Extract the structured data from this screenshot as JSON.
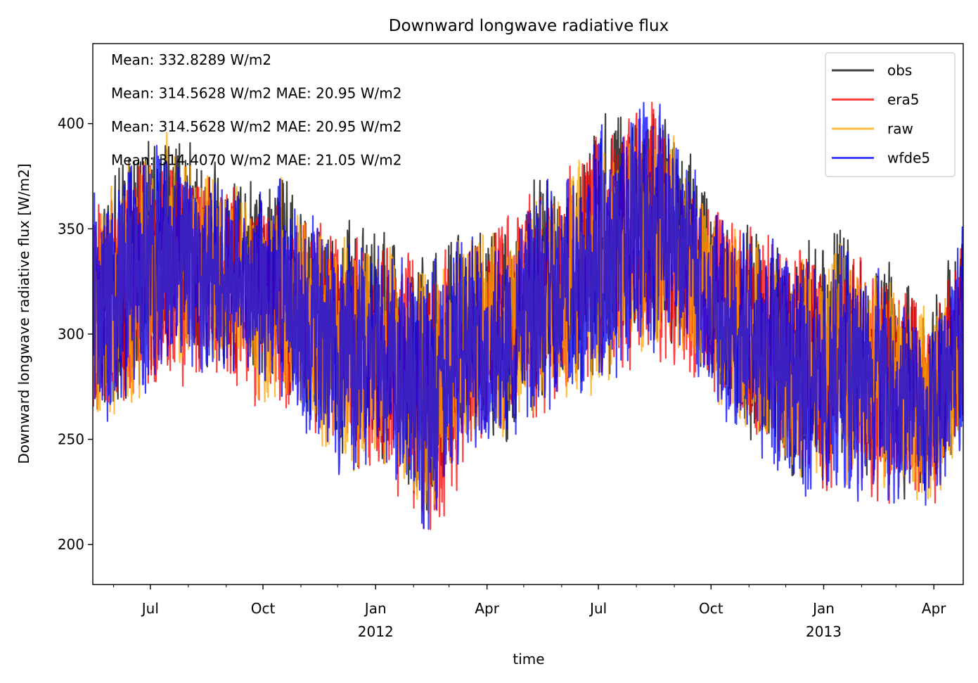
{
  "chart_data": {
    "type": "line",
    "title": "Downward longwave radiative flux",
    "xlabel": "time",
    "ylabel": "Downward longwave radiative flux [W/m2]",
    "x_range": [
      "2011-05-15",
      "2013-04-25"
    ],
    "ylim": [
      181,
      438
    ],
    "grid": false,
    "legend_placement": "top-right",
    "y_ticks": [
      {
        "value": 200,
        "label": "200"
      },
      {
        "value": 250,
        "label": "250"
      },
      {
        "value": 300,
        "label": "300"
      },
      {
        "value": 350,
        "label": "350"
      },
      {
        "value": 400,
        "label": "400"
      }
    ],
    "x_major_ticks": [
      {
        "date": "2011-07-01",
        "label": "Jul",
        "year_label": ""
      },
      {
        "date": "2011-10-01",
        "label": "Oct",
        "year_label": ""
      },
      {
        "date": "2012-01-01",
        "label": "Jan",
        "year_label": "2012"
      },
      {
        "date": "2012-04-01",
        "label": "Apr",
        "year_label": ""
      },
      {
        "date": "2012-07-01",
        "label": "Jul",
        "year_label": ""
      },
      {
        "date": "2012-10-01",
        "label": "Oct",
        "year_label": ""
      },
      {
        "date": "2013-01-01",
        "label": "Jan",
        "year_label": "2013"
      },
      {
        "date": "2013-04-01",
        "label": "Apr",
        "year_label": ""
      }
    ],
    "x_minor_ticks": [
      "2011-06-01",
      "2011-08-01",
      "2011-09-01",
      "2011-11-01",
      "2011-12-01",
      "2012-02-01",
      "2012-03-01",
      "2012-05-01",
      "2012-06-01",
      "2012-08-01",
      "2012-09-01",
      "2012-11-01",
      "2012-12-01",
      "2013-02-01",
      "2013-03-01"
    ],
    "annotations": [
      {
        "text": "Mean: 332.8289 W/m2",
        "color": "#000000"
      },
      {
        "text": "Mean: 314.5628 W/m2 MAE: 20.95 W/m2",
        "color": "#ff0000"
      },
      {
        "text": "Mean: 314.5628 W/m2 MAE: 20.95 W/m2",
        "color": "#ffa500"
      },
      {
        "text": "Mean: 314.4070 W/m2 MAE: 21.05 W/m2",
        "color": "#0000ff"
      }
    ],
    "series": [
      {
        "name": "obs",
        "color": "#000000",
        "dates": [
          "2011-05-15",
          "2011-06-01",
          "2011-06-15",
          "2011-07-01",
          "2011-07-15",
          "2011-08-01",
          "2011-08-15",
          "2011-09-01",
          "2011-09-15",
          "2011-10-01",
          "2011-10-15",
          "2011-11-01",
          "2011-11-15",
          "2011-12-01",
          "2011-12-15",
          "2012-01-01",
          "2012-01-15",
          "2012-02-01",
          "2012-02-15",
          "2012-03-01",
          "2012-03-15",
          "2012-04-01",
          "2012-04-15",
          "2012-05-01",
          "2012-05-15",
          "2012-06-01",
          "2012-06-15",
          "2012-07-01",
          "2012-07-15",
          "2012-08-01",
          "2012-08-15",
          "2012-09-01",
          "2012-09-15",
          "2012-10-01",
          "2012-10-15",
          "2012-11-01",
          "2012-11-15",
          "2012-12-01",
          "2012-12-15",
          "2013-01-01",
          "2013-01-15",
          "2013-02-01",
          "2013-02-15",
          "2013-03-01",
          "2013-03-15",
          "2013-04-01",
          "2013-04-15",
          "2013-04-25"
        ],
        "lower": [
          258,
          255,
          262,
          270,
          285,
          280,
          275,
          274,
          280,
          262,
          270,
          255,
          248,
          235,
          225,
          240,
          230,
          215,
          198,
          230,
          240,
          250,
          240,
          255,
          260,
          265,
          270,
          262,
          278,
          285,
          285,
          290,
          285,
          270,
          258,
          245,
          240,
          225,
          222,
          230,
          215,
          225,
          222,
          215,
          218,
          215,
          230,
          250
        ],
        "upper": [
          372,
          385,
          398,
          405,
          412,
          400,
          395,
          385,
          378,
          382,
          390,
          370,
          372,
          360,
          366,
          355,
          360,
          345,
          352,
          358,
          360,
          365,
          358,
          370,
          385,
          382,
          398,
          408,
          412,
          420,
          422,
          410,
          398,
          378,
          368,
          362,
          360,
          350,
          356,
          350,
          362,
          340,
          345,
          335,
          330,
          325,
          350,
          360
        ]
      },
      {
        "name": "era5",
        "color": "#ff0000",
        "dates": [
          "2011-05-15",
          "2011-07-01",
          "2011-08-15",
          "2011-10-01",
          "2011-11-15",
          "2012-01-01",
          "2012-02-15",
          "2012-04-01",
          "2012-05-15",
          "2012-07-01",
          "2012-08-15",
          "2012-10-01",
          "2012-11-15",
          "2013-01-01",
          "2013-02-15",
          "2013-04-01",
          "2013-04-25"
        ],
        "lower": [
          255,
          262,
          272,
          258,
          245,
          222,
          195,
          245,
          255,
          268,
          282,
          262,
          238,
          218,
          210,
          212,
          245
        ],
        "upper": [
          365,
          400,
          390,
          375,
          365,
          350,
          345,
          358,
          378,
          402,
          420,
          370,
          355,
          345,
          340,
          320,
          355
        ]
      },
      {
        "name": "raw",
        "color": "#ffa500",
        "dates": [
          "2011-05-15",
          "2011-06-01",
          "2011-06-15",
          "2011-07-01",
          "2011-07-15",
          "2011-08-01",
          "2011-08-15",
          "2011-09-01",
          "2011-09-15",
          "2011-10-01",
          "2011-10-15",
          "2011-11-01",
          "2011-11-15",
          "2011-12-01",
          "2011-12-15",
          "2012-01-01",
          "2012-01-15",
          "2012-02-01",
          "2012-02-15",
          "2012-03-01",
          "2012-03-15",
          "2012-04-01",
          "2012-04-15",
          "2012-05-01",
          "2012-05-15",
          "2012-06-01",
          "2012-06-15",
          "2012-07-01",
          "2012-07-15",
          "2012-08-01",
          "2012-08-15",
          "2012-09-01",
          "2012-09-15",
          "2012-10-01",
          "2012-10-15",
          "2012-11-01",
          "2012-11-15",
          "2012-12-01",
          "2012-12-15",
          "2013-01-01",
          "2013-01-15",
          "2013-02-01",
          "2013-02-15",
          "2013-03-01",
          "2013-03-15",
          "2013-04-01",
          "2013-04-15",
          "2013-04-25"
        ],
        "lower": [
          256,
          252,
          258,
          268,
          280,
          275,
          272,
          272,
          278,
          258,
          266,
          250,
          244,
          230,
          222,
          236,
          226,
          210,
          196,
          226,
          236,
          246,
          236,
          250,
          256,
          262,
          266,
          258,
          274,
          282,
          282,
          286,
          280,
          266,
          254,
          240,
          236,
          222,
          218,
          226,
          212,
          220,
          218,
          212,
          214,
          212,
          226,
          246
        ],
        "upper": [
          362,
          378,
          392,
          398,
          402,
          392,
          388,
          378,
          370,
          372,
          384,
          362,
          364,
          352,
          356,
          348,
          352,
          336,
          345,
          350,
          352,
          358,
          350,
          362,
          378,
          374,
          392,
          400,
          404,
          414,
          416,
          402,
          388,
          370,
          360,
          355,
          352,
          344,
          348,
          342,
          356,
          335,
          338,
          328,
          322,
          318,
          344,
          352
        ]
      },
      {
        "name": "wfde5",
        "color": "#0000ff",
        "dates": [
          "2011-05-15",
          "2011-06-01",
          "2011-06-15",
          "2011-07-01",
          "2011-07-15",
          "2011-08-01",
          "2011-08-15",
          "2011-09-01",
          "2011-09-15",
          "2011-10-01",
          "2011-10-15",
          "2011-11-01",
          "2011-11-15",
          "2011-12-01",
          "2011-12-15",
          "2012-01-01",
          "2012-01-15",
          "2012-02-01",
          "2012-02-15",
          "2012-03-01",
          "2012-03-15",
          "2012-04-01",
          "2012-04-15",
          "2012-05-01",
          "2012-05-15",
          "2012-06-01",
          "2012-06-15",
          "2012-07-01",
          "2012-07-15",
          "2012-08-01",
          "2012-08-15",
          "2012-09-01",
          "2012-09-15",
          "2012-10-01",
          "2012-10-15",
          "2012-11-01",
          "2012-11-15",
          "2012-12-01",
          "2012-12-15",
          "2013-01-01",
          "2013-01-15",
          "2013-02-01",
          "2013-02-15",
          "2013-03-01",
          "2013-03-15",
          "2013-04-01",
          "2013-04-15",
          "2013-04-25"
        ],
        "lower": [
          250,
          250,
          256,
          262,
          276,
          272,
          268,
          270,
          275,
          255,
          262,
          248,
          240,
          228,
          220,
          232,
          224,
          208,
          193,
          222,
          232,
          242,
          232,
          246,
          252,
          258,
          262,
          255,
          270,
          278,
          280,
          282,
          278,
          262,
          250,
          238,
          232,
          218,
          214,
          222,
          208,
          216,
          214,
          205,
          210,
          208,
          222,
          242
        ],
        "upper": [
          380,
          380,
          394,
          396,
          400,
          396,
          392,
          380,
          372,
          376,
          386,
          364,
          366,
          354,
          358,
          348,
          354,
          338,
          346,
          352,
          354,
          360,
          352,
          365,
          380,
          376,
          396,
          425,
          406,
          418,
          427,
          404,
          390,
          372,
          362,
          356,
          354,
          346,
          350,
          344,
          356,
          334,
          340,
          330,
          322,
          320,
          346,
          360
        ]
      }
    ]
  }
}
